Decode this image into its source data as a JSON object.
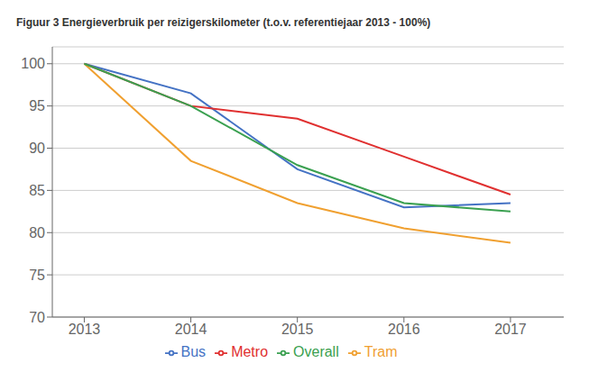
{
  "chart_data": {
    "type": "line",
    "title": "Figuur 3 Energieverbruik per reizigerskilometer (t.o.v. referentiejaar 2013 - 100%)",
    "x": [
      2013,
      2014,
      2015,
      2016,
      2017
    ],
    "series": [
      {
        "name": "Bus",
        "color": "#4472c4",
        "values": [
          100,
          96.5,
          87.5,
          83.0,
          83.5
        ]
      },
      {
        "name": "Metro",
        "color": "#e03030",
        "values": [
          100,
          95.0,
          93.5,
          89.0,
          84.5
        ]
      },
      {
        "name": "Tram",
        "color": "#f0a030",
        "values": [
          100,
          88.5,
          83.5,
          80.5,
          78.8
        ]
      },
      {
        "name": "Overall",
        "color": "#3aa050",
        "values": [
          100,
          95.0,
          88.0,
          83.5,
          82.5
        ]
      }
    ],
    "xlim": [
      2012.7,
      2017.5
    ],
    "xticks": [
      2013,
      2014,
      2015,
      2016,
      2017
    ],
    "ylim": [
      70,
      102
    ],
    "yticks": [
      70,
      75,
      80,
      85,
      90,
      95,
      100
    ],
    "grid": true,
    "legend": "bottom"
  }
}
